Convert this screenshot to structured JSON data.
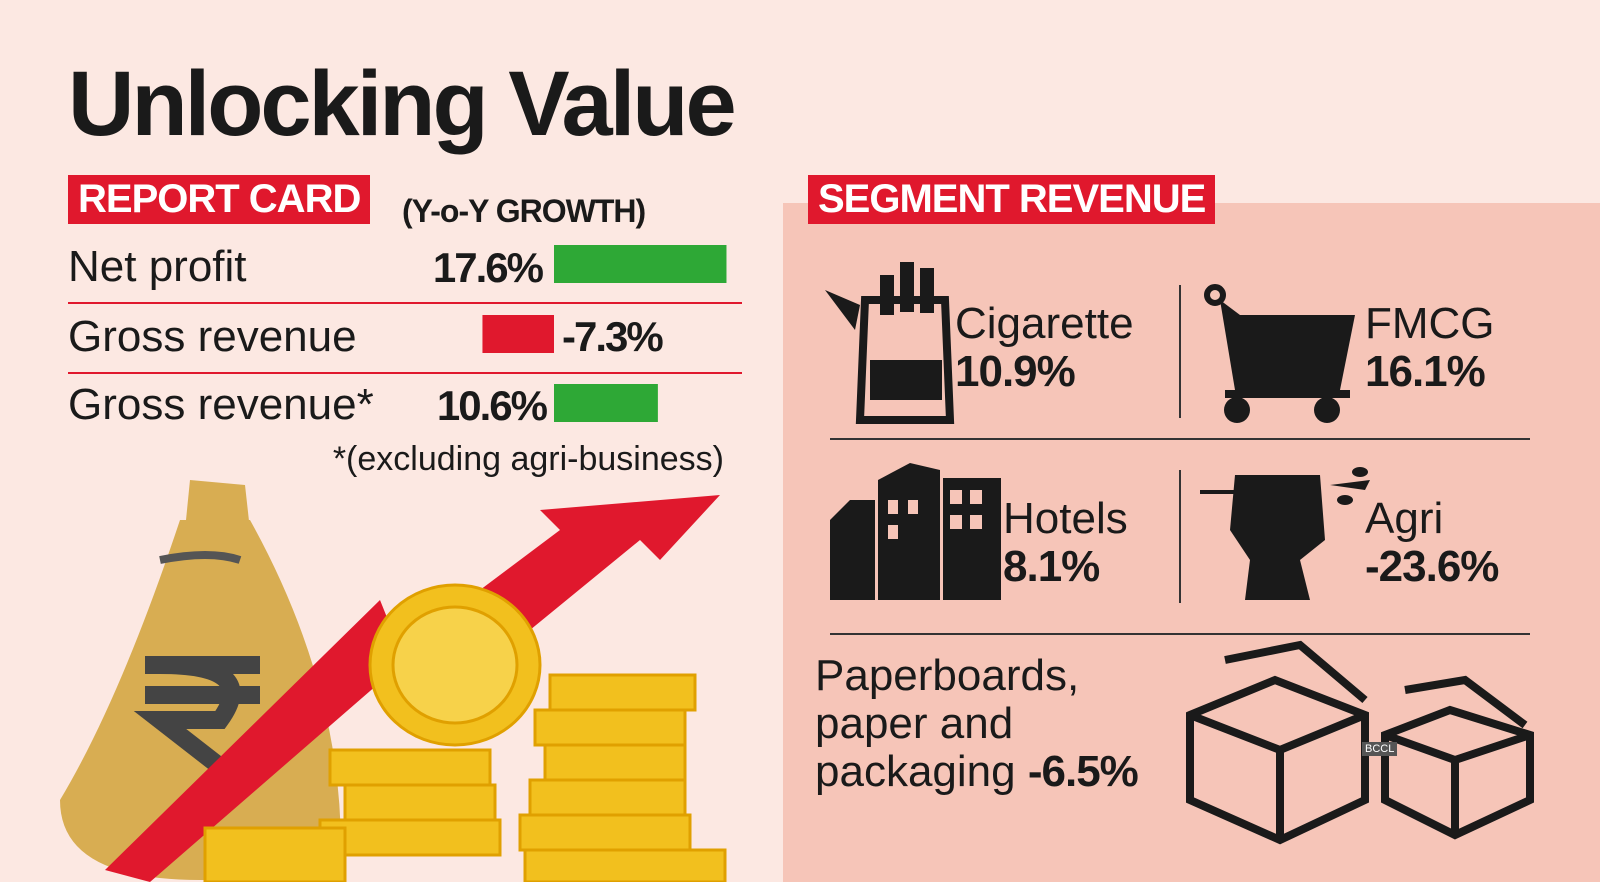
{
  "header": {
    "title": "Unlocking Value"
  },
  "report_card": {
    "badge": "REPORT CARD",
    "subtitle": "(Y-o-Y GROWTH)",
    "rows": [
      {
        "label": "Net profit",
        "value": 17.6,
        "value_label": "17.6%"
      },
      {
        "label": "Gross revenue",
        "value": -7.3,
        "value_label": "-7.3%"
      },
      {
        "label": "Gross revenue*",
        "value": 10.6,
        "value_label": "10.6%"
      }
    ],
    "footnote": "*(excluding agri-business)",
    "positive_color": "#2ea836",
    "negative_color": "#e0182d"
  },
  "segment_revenue": {
    "badge": "SEGMENT REVENUE",
    "segments": [
      {
        "name": "Cigarette",
        "growth": "10.9%"
      },
      {
        "name": "FMCG",
        "growth": "16.1%"
      },
      {
        "name": "Hotels",
        "growth": "8.1%"
      },
      {
        "name": "Agri",
        "growth": "-23.6%"
      },
      {
        "name": "Paperboards, paper and packaging",
        "growth": "-6.5%"
      }
    ]
  },
  "credit": "BCCL"
}
